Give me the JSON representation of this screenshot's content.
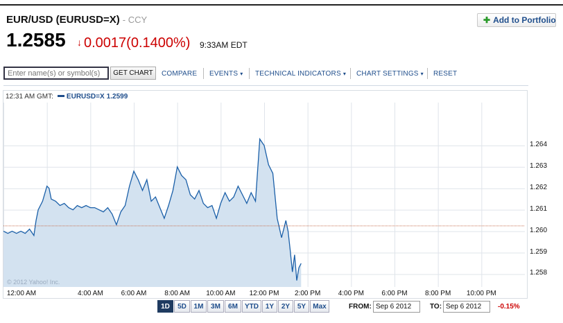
{
  "quote": {
    "title": "EUR/USD (EURUSD=X)",
    "ccy_label": "- CCY",
    "price": "1.2585",
    "change_arrow": "↓",
    "change": "0.0017",
    "change_pct": "(0.1400%)",
    "time": "9:33AM EDT"
  },
  "portfolio": {
    "plus": "✚",
    "label": "Add to Portfolio"
  },
  "toolbar": {
    "symbol_placeholder": "Enter name(s) or symbol(s)",
    "get_chart_label": "GET CHART",
    "compare_label": "COMPARE",
    "events_label": "EVENTS",
    "technical_label": "TECHNICAL INDICATORS",
    "settings_label": "CHART SETTINGS",
    "reset_label": "RESET",
    "caret": "▾"
  },
  "legend": {
    "time": "12:31 AM GMT:",
    "series": "EURUSD=X",
    "value": "1.2599"
  },
  "watermark": "© 2012 Yahoo! Inc.",
  "range": {
    "buttons": [
      "1D",
      "5D",
      "1M",
      "3M",
      "6M",
      "YTD",
      "1Y",
      "2Y",
      "5Y",
      "Max"
    ],
    "active": "1D",
    "from_label": "FROM:",
    "from_value": "Sep 6 2012",
    "to_label": "TO:",
    "to_value": "Sep 6 2012",
    "pct": "-0.15%"
  },
  "colors": {
    "accent": "#1f4e8c",
    "negative": "#cc0000",
    "area_fill": "#d3e2f0",
    "line": "#1a5fa8",
    "grid": "#dfe4ea",
    "ref_line": "#c87050"
  },
  "chart_data": {
    "type": "area",
    "title": "",
    "xlabel": "",
    "ylabel": "",
    "x_tick_labels": [
      "12:00 AM",
      "4:00 AM",
      "6:00 AM",
      "8:00 AM",
      "10:00 AM",
      "12:00 PM",
      "2:00 PM",
      "4:00 PM",
      "6:00 PM",
      "8:00 PM",
      "10:00 PM"
    ],
    "y_tick_labels": [
      "1.264",
      "1.263",
      "1.262",
      "1.261",
      "1.260",
      "1.259",
      "1.258"
    ],
    "ylim": [
      1.2574,
      1.266
    ],
    "xlim": [
      0,
      24
    ],
    "previous_close": 1.26025,
    "grid": true,
    "series": [
      {
        "x": [
          0.0,
          0.2,
          0.4,
          0.6,
          0.8,
          1.0,
          1.2,
          1.4,
          1.5,
          1.6,
          1.8,
          2.0,
          2.1,
          2.2,
          2.4,
          2.6,
          2.8,
          3.0,
          3.2,
          3.4,
          3.6,
          3.8,
          4.0,
          4.2,
          4.4,
          4.6,
          4.8,
          5.0,
          5.2,
          5.4,
          5.6,
          5.8,
          6.0,
          6.2,
          6.4,
          6.6,
          6.8,
          7.0,
          7.2,
          7.4,
          7.6,
          7.8,
          8.0,
          8.2,
          8.4,
          8.6,
          8.8,
          9.0,
          9.2,
          9.4,
          9.6,
          9.8,
          10.0,
          10.2,
          10.4,
          10.6,
          10.8,
          11.0,
          11.2,
          11.4,
          11.6,
          11.8,
          12.0,
          12.2,
          12.4,
          12.6,
          12.8,
          13.0,
          13.1,
          13.2,
          13.3,
          13.4,
          13.5,
          13.6,
          13.7
        ],
        "y": [
          1.26,
          1.2599,
          1.26,
          1.2599,
          1.26,
          1.2599,
          1.2601,
          1.2598,
          1.2605,
          1.261,
          1.2614,
          1.2621,
          1.262,
          1.2615,
          1.2614,
          1.2612,
          1.2613,
          1.2611,
          1.261,
          1.2612,
          1.2611,
          1.2612,
          1.2611,
          1.2611,
          1.261,
          1.2609,
          1.2611,
          1.2608,
          1.2603,
          1.2609,
          1.2612,
          1.2621,
          1.2628,
          1.2624,
          1.2619,
          1.2624,
          1.2614,
          1.2616,
          1.2611,
          1.2606,
          1.2612,
          1.2619,
          1.263,
          1.2626,
          1.2624,
          1.2617,
          1.2615,
          1.2619,
          1.2613,
          1.2611,
          1.2612,
          1.2606,
          1.2613,
          1.2618,
          1.2614,
          1.2616,
          1.2621,
          1.2617,
          1.2613,
          1.2618,
          1.2614,
          1.2643,
          1.264,
          1.2631,
          1.2627,
          1.2606,
          1.2597,
          1.2605,
          1.26,
          1.2591,
          1.2581,
          1.2589,
          1.2577,
          1.2583,
          1.2585
        ]
      }
    ]
  }
}
